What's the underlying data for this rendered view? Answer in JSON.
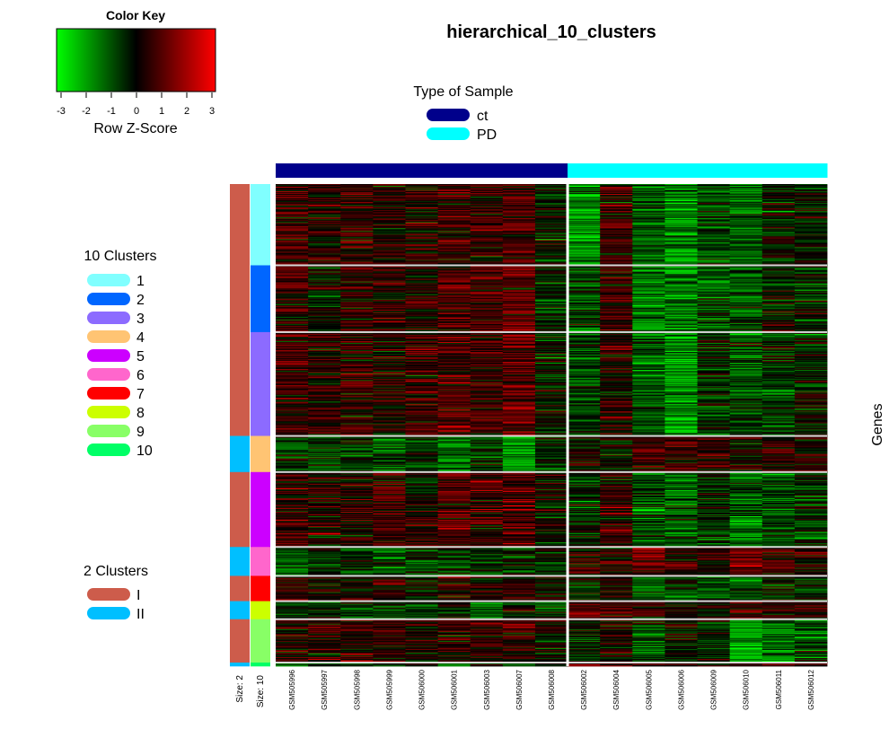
{
  "chart_data": {
    "type": "heatmap",
    "title": "hierarchical_10_clusters",
    "ylabel": "Genes",
    "color_key": {
      "title": "Color Key",
      "label": "Row Z-Score",
      "ticks": [
        "-3",
        "-2",
        "-1",
        "0",
        "1",
        "2",
        "3"
      ],
      "range": [
        -3,
        3
      ],
      "colors": [
        "#00ff00",
        "#000000",
        "#ff0000"
      ]
    },
    "sample_type_legend": {
      "title": "Type of Sample",
      "entries": [
        {
          "label": "ct",
          "color": "#00008b"
        },
        {
          "label": "PD",
          "color": "#00ffff"
        }
      ]
    },
    "clusters10_legend": {
      "title": "10 Clusters",
      "entries": [
        {
          "label": "1",
          "color": "#80ffff"
        },
        {
          "label": "2",
          "color": "#0066ff"
        },
        {
          "label": "3",
          "color": "#8c6bff"
        },
        {
          "label": "4",
          "color": "#ffc473"
        },
        {
          "label": "5",
          "color": "#cc00ff"
        },
        {
          "label": "6",
          "color": "#ff66cc"
        },
        {
          "label": "7",
          "color": "#ff0000"
        },
        {
          "label": "8",
          "color": "#ccff00"
        },
        {
          "label": "9",
          "color": "#88ff66"
        },
        {
          "label": "10",
          "color": "#00ff66"
        }
      ]
    },
    "clusters2_legend": {
      "title": "2 Clusters",
      "entries": [
        {
          "label": "I",
          "color": "#cd5c4b"
        },
        {
          "label": "II",
          "color": "#00bfff"
        }
      ]
    },
    "size_labels": [
      "Size: 2",
      "Size: 10"
    ],
    "samples": [
      {
        "id": "GSM505996",
        "type": "ct"
      },
      {
        "id": "GSM505997",
        "type": "ct"
      },
      {
        "id": "GSM505998",
        "type": "ct"
      },
      {
        "id": "GSM505999",
        "type": "ct"
      },
      {
        "id": "GSM506000",
        "type": "ct"
      },
      {
        "id": "GSM506001",
        "type": "ct"
      },
      {
        "id": "GSM506003",
        "type": "ct"
      },
      {
        "id": "GSM506007",
        "type": "ct"
      },
      {
        "id": "GSM506008",
        "type": "ct"
      },
      {
        "id": "GSM506002",
        "type": "PD"
      },
      {
        "id": "GSM506004",
        "type": "PD"
      },
      {
        "id": "GSM506005",
        "type": "PD"
      },
      {
        "id": "GSM506006",
        "type": "PD"
      },
      {
        "id": "GSM506009",
        "type": "PD"
      },
      {
        "id": "GSM506010",
        "type": "PD"
      },
      {
        "id": "GSM506011",
        "type": "PD"
      },
      {
        "id": "GSM506012",
        "type": "PD"
      }
    ],
    "row_clusters": [
      {
        "cluster10": "1",
        "cluster2": "I",
        "rows": 90,
        "means": [
          0.6,
          0.3,
          0.5,
          0.3,
          0.4,
          0.6,
          0.5,
          0.8,
          -0.1,
          -1.6,
          0.6,
          -1.0,
          -1.5,
          -0.8,
          -1.0,
          -0.3,
          -0.2
        ]
      },
      {
        "cluster10": "2",
        "cluster2": "I",
        "rows": 74,
        "means": [
          0.7,
          -0.1,
          0.4,
          0.4,
          0.3,
          0.8,
          0.7,
          1.0,
          -0.4,
          -0.8,
          0.6,
          -1.5,
          -1.5,
          -1.0,
          -0.8,
          -0.3,
          -0.3
        ]
      },
      {
        "cluster10": "3",
        "cluster2": "I",
        "rows": 115,
        "means": [
          0.7,
          0.4,
          0.6,
          0.4,
          0.6,
          0.7,
          0.6,
          1.0,
          -0.1,
          -0.8,
          0.3,
          -1.0,
          -1.8,
          -0.5,
          -0.8,
          -0.5,
          -0.3
        ]
      },
      {
        "cluster10": "4",
        "cluster2": "II",
        "rows": 40,
        "means": [
          -0.6,
          -0.8,
          -0.5,
          -0.9,
          -0.6,
          -1.2,
          -0.5,
          -1.8,
          -0.4,
          0.1,
          0.2,
          0.6,
          0.8,
          0.6,
          0.3,
          0.4,
          0.3
        ]
      },
      {
        "cluster10": "5",
        "cluster2": "I",
        "rows": 83,
        "means": [
          0.5,
          0.3,
          0.4,
          0.7,
          0.2,
          0.8,
          0.7,
          1.0,
          0.0,
          -0.5,
          0.4,
          -1.0,
          -1.0,
          -0.5,
          -1.3,
          -0.8,
          -0.4
        ]
      },
      {
        "cluster10": "6",
        "cluster2": "II",
        "rows": 32,
        "means": [
          -0.9,
          -0.5,
          -0.6,
          -1.0,
          -0.8,
          -0.7,
          -0.6,
          -0.6,
          -0.3,
          0.4,
          0.3,
          1.2,
          0.5,
          0.3,
          1.5,
          0.8,
          0.5
        ]
      },
      {
        "cluster10": "7",
        "cluster2": "I",
        "rows": 28,
        "means": [
          0.6,
          0.2,
          0.4,
          0.3,
          -0.2,
          0.7,
          0.3,
          0.6,
          0.1,
          -0.3,
          0.2,
          -1.2,
          -0.6,
          -0.6,
          -1.2,
          -0.2,
          -0.3
        ]
      },
      {
        "cluster10": "8",
        "cluster2": "II",
        "rows": 20,
        "means": [
          -0.5,
          -0.4,
          -0.6,
          -0.5,
          -0.8,
          -0.4,
          -0.9,
          -0.4,
          -0.6,
          1.2,
          0.5,
          0.2,
          0.3,
          0.1,
          0.9,
          0.4,
          0.4
        ]
      },
      {
        "cluster10": "9",
        "cluster2": "I",
        "rows": 48,
        "means": [
          0.5,
          0.4,
          0.5,
          0.5,
          0.3,
          0.6,
          0.5,
          0.5,
          0.1,
          -0.4,
          0.1,
          -0.8,
          -0.2,
          -0.4,
          -2.0,
          -1.2,
          -0.8
        ]
      },
      {
        "cluster10": "10",
        "cluster2": "II",
        "rows": 4,
        "means": [
          -0.6,
          -0.6,
          -0.6,
          -0.6,
          -0.6,
          -0.6,
          -0.6,
          -0.6,
          -0.6,
          1.0,
          0.5,
          0.5,
          0.5,
          0.5,
          0.5,
          0.5,
          0.5
        ]
      }
    ]
  }
}
